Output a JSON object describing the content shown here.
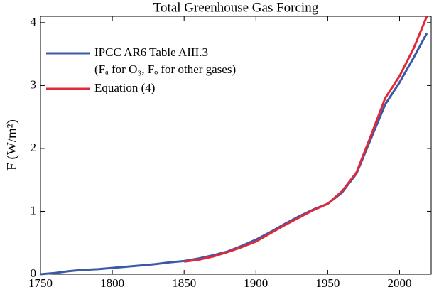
{
  "chart_data": {
    "type": "line",
    "title": "Total Greenhouse Gas Forcing",
    "y_label": "F (W/m²)",
    "legend_note": "(Fₐ for O₃, Fₒ for other gases)",
    "legend": "upper left",
    "xlim": [
      1750,
      2022
    ],
    "xticks": [
      1750,
      1800,
      1850,
      1900,
      1950,
      2000
    ],
    "ylim": [
      0,
      4.1
    ],
    "yticks": [
      0,
      1,
      2,
      3,
      4
    ],
    "series": [
      {
        "name": "IPCC AR6 Table AIII.3",
        "color": "#3a5aa8",
        "x": [
          1750,
          1760,
          1770,
          1780,
          1790,
          1800,
          1810,
          1820,
          1830,
          1840,
          1850,
          1860,
          1870,
          1880,
          1890,
          1900,
          1910,
          1920,
          1930,
          1940,
          1950,
          1960,
          1970,
          1980,
          1990,
          2000,
          2010,
          2019
        ],
        "values": [
          0,
          0.02,
          0.05,
          0.07,
          0.08,
          0.1,
          0.12,
          0.14,
          0.16,
          0.19,
          0.21,
          0.25,
          0.3,
          0.36,
          0.45,
          0.55,
          0.67,
          0.8,
          0.92,
          1.03,
          1.12,
          1.3,
          1.6,
          2.15,
          2.7,
          3.05,
          3.45,
          3.83
        ]
      },
      {
        "name": "Equation (4)",
        "color": "#e02a3a",
        "x": [
          1850,
          1860,
          1870,
          1880,
          1890,
          1900,
          1910,
          1920,
          1930,
          1940,
          1950,
          1960,
          1970,
          1980,
          1990,
          2000,
          2010,
          2019
        ],
        "values": [
          0.2,
          0.23,
          0.28,
          0.35,
          0.43,
          0.52,
          0.65,
          0.78,
          0.9,
          1.02,
          1.12,
          1.32,
          1.62,
          2.2,
          2.8,
          3.15,
          3.6,
          4.1
        ]
      }
    ]
  }
}
